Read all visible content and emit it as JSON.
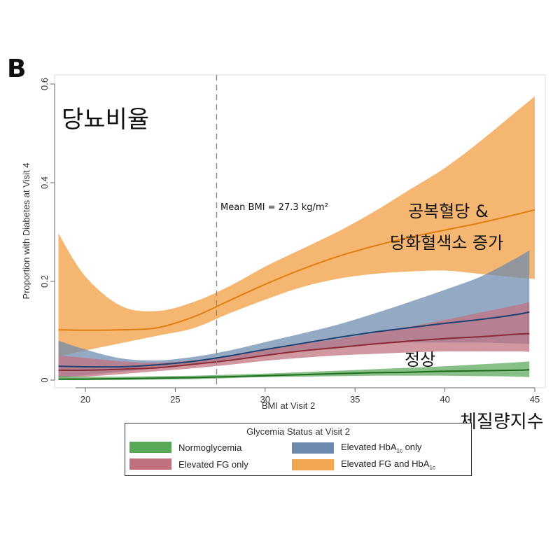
{
  "panel_label": "B",
  "annotations": {
    "mean_bmi": "Mean BMI = 27.3 kg/m²",
    "korean_title": "당뇨비율",
    "korean_fg_hba1c_line1": "공복혈당 &",
    "korean_fg_hba1c_line2": "당화혈색소 증가",
    "korean_normal": "정상",
    "korean_bmi": "체질량지수"
  },
  "legend": {
    "title": "Glycemia Status at Visit 2",
    "normo": "Normoglycemia",
    "fg": "Elevated FG only",
    "hba_pre": "Elevated HbA",
    "hba_sub": "1c",
    "hba_post": " only",
    "both_pre": "Elevated FG and HbA",
    "both_sub": "1c"
  },
  "colors": {
    "normo_line": "#1f6e1f",
    "normo_band": "#58a858",
    "fg_line": "#8a2a36",
    "fg_band": "#c0707e",
    "hba_line": "#1f3f6e",
    "hba_band": "#6b89ad",
    "both_line": "#e07e10",
    "both_band": "#f2a650",
    "ref_line": "#888888"
  },
  "chart_data": {
    "type": "line",
    "xlabel": "BMI at Visit 2",
    "ylabel": "Proportion with Diabetes at Visit 4",
    "xlim": [
      18.5,
      45
    ],
    "ylim": [
      0,
      0.6
    ],
    "x_ticks": [
      20,
      25,
      30,
      35,
      40,
      45
    ],
    "y_ticks": [
      0,
      0.2,
      0.4,
      0.6
    ],
    "y_tick_labels": [
      "0",
      "0.2",
      "0.4",
      "0.6"
    ],
    "reference_line_x": 27.3,
    "grid": false,
    "legend_position": "bottom",
    "series": [
      {
        "name": "Normoglycemia",
        "key": "normo",
        "x": [
          18.5,
          20,
          22,
          24,
          26,
          28,
          30,
          32,
          34,
          36,
          38,
          40,
          42,
          44,
          44.7
        ],
        "y": [
          0.002,
          0.002,
          0.003,
          0.004,
          0.005,
          0.007,
          0.009,
          0.011,
          0.013,
          0.015,
          0.016,
          0.018,
          0.019,
          0.02,
          0.021
        ],
        "lower": [
          0.0,
          0.0,
          0.0,
          0.001,
          0.002,
          0.004,
          0.006,
          0.007,
          0.008,
          0.009,
          0.009,
          0.009,
          0.008,
          0.007,
          0.006
        ],
        "upper": [
          0.008,
          0.007,
          0.007,
          0.008,
          0.009,
          0.011,
          0.013,
          0.016,
          0.019,
          0.022,
          0.025,
          0.028,
          0.032,
          0.036,
          0.038
        ]
      },
      {
        "name": "Elevated FG only",
        "key": "fg",
        "x": [
          18.5,
          20,
          22,
          24,
          26,
          28,
          30,
          32,
          34,
          36,
          38,
          40,
          42,
          44,
          44.7
        ],
        "y": [
          0.02,
          0.02,
          0.022,
          0.025,
          0.032,
          0.04,
          0.05,
          0.059,
          0.066,
          0.073,
          0.079,
          0.084,
          0.088,
          0.093,
          0.094
        ],
        "lower": [
          0.005,
          0.007,
          0.012,
          0.018,
          0.024,
          0.031,
          0.039,
          0.045,
          0.05,
          0.053,
          0.056,
          0.058,
          0.058,
          0.058,
          0.057
        ],
        "upper": [
          0.05,
          0.045,
          0.038,
          0.035,
          0.04,
          0.049,
          0.061,
          0.073,
          0.083,
          0.095,
          0.108,
          0.122,
          0.137,
          0.152,
          0.158
        ]
      },
      {
        "name": "Elevated HbA1c only",
        "key": "hba",
        "x": [
          18.5,
          20,
          22,
          24,
          26,
          28,
          30,
          32,
          34,
          36,
          38,
          40,
          42,
          44,
          44.7
        ],
        "y": [
          0.028,
          0.027,
          0.027,
          0.031,
          0.038,
          0.049,
          0.062,
          0.074,
          0.086,
          0.097,
          0.106,
          0.115,
          0.123,
          0.133,
          0.138
        ],
        "lower": [
          0.006,
          0.01,
          0.017,
          0.024,
          0.031,
          0.04,
          0.05,
          0.059,
          0.067,
          0.072,
          0.076,
          0.076,
          0.076,
          0.074,
          0.073
        ],
        "upper": [
          0.08,
          0.062,
          0.044,
          0.04,
          0.047,
          0.06,
          0.077,
          0.094,
          0.112,
          0.134,
          0.158,
          0.183,
          0.21,
          0.248,
          0.263
        ]
      },
      {
        "name": "Elevated FG and HbA1c",
        "key": "both",
        "x": [
          18.5,
          20,
          22,
          24,
          26,
          28,
          30,
          32,
          34,
          36,
          38,
          40,
          42,
          44,
          45
        ],
        "y": [
          0.102,
          0.101,
          0.102,
          0.106,
          0.128,
          0.161,
          0.194,
          0.224,
          0.25,
          0.271,
          0.289,
          0.304,
          0.319,
          0.336,
          0.345
        ],
        "lower": [
          0.048,
          0.06,
          0.075,
          0.09,
          0.105,
          0.135,
          0.163,
          0.188,
          0.205,
          0.215,
          0.22,
          0.222,
          0.215,
          0.208,
          0.205
        ],
        "upper": [
          0.297,
          0.21,
          0.15,
          0.14,
          0.158,
          0.19,
          0.23,
          0.265,
          0.3,
          0.34,
          0.385,
          0.43,
          0.485,
          0.545,
          0.575
        ]
      }
    ]
  }
}
